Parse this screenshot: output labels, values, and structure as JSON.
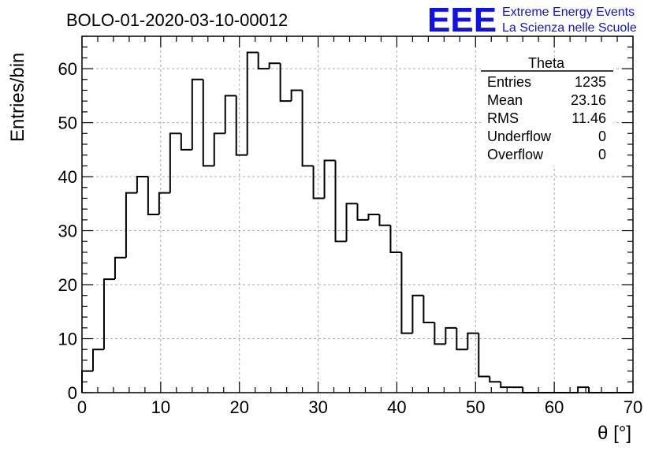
{
  "header": {
    "run_title": "BOLO-01-2020-03-10-00012",
    "brand_logo": "EEE",
    "brand_line1": "Extreme Energy Events",
    "brand_line2": "La Scienza nelle Scuole",
    "brand_color": "#1010e8"
  },
  "stats_box": {
    "name": "Theta",
    "rows": [
      {
        "label": "Entries",
        "value": "1235"
      },
      {
        "label": "Mean",
        "value": "23.16"
      },
      {
        "label": "RMS",
        "value": "11.46"
      },
      {
        "label": "Underflow",
        "value": "0"
      },
      {
        "label": "Overflow",
        "value": "0"
      }
    ]
  },
  "chart_data": {
    "type": "bar",
    "style": "step-histogram",
    "title": "BOLO-01-2020-03-10-00012",
    "xlabel": "θ [°]",
    "ylabel": "Entries/bin",
    "xlim": [
      0,
      70
    ],
    "ylim": [
      0,
      66
    ],
    "bin_width": 1.4,
    "xticks": [
      0,
      10,
      20,
      30,
      40,
      50,
      60,
      70
    ],
    "yticks": [
      0,
      10,
      20,
      30,
      40,
      50,
      60
    ],
    "grid": true,
    "values": [
      4,
      8,
      21,
      25,
      37,
      40,
      33,
      37,
      48,
      45,
      58,
      42,
      48,
      55,
      44,
      63,
      60,
      61,
      54,
      56,
      42,
      36,
      43,
      28,
      35,
      32,
      33,
      31,
      26,
      11,
      18,
      13,
      9,
      12,
      8,
      11,
      3,
      2,
      1,
      1,
      0,
      0,
      0,
      0,
      0,
      1,
      0,
      0,
      0,
      0
    ]
  }
}
